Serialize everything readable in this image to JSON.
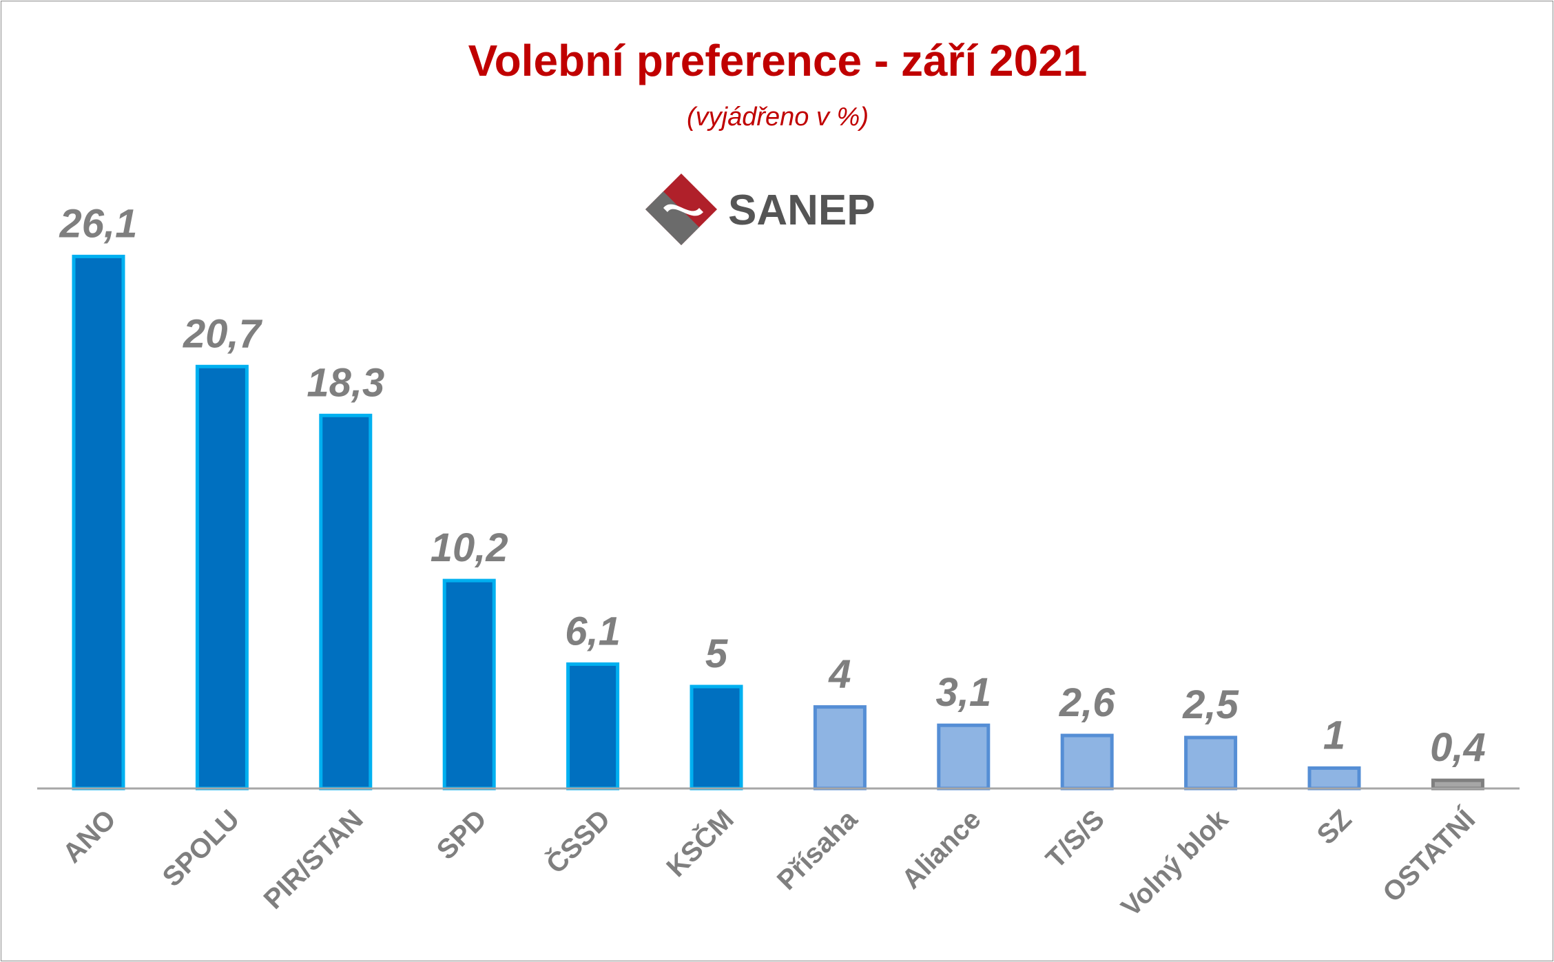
{
  "chart_data": {
    "type": "bar",
    "title": "Volební preference - září 2021",
    "subtitle": "(vyjádřeno v %)",
    "categories": [
      "ANO",
      "SPOLU",
      "PIR/STAN",
      "SPD",
      "ČSSD",
      "KSČM",
      "Přísaha",
      "Aliance",
      "T/S/S",
      "Volný blok",
      "SZ",
      "OSTATNÍ"
    ],
    "values": [
      26.1,
      20.7,
      18.3,
      10.2,
      6.1,
      5,
      4,
      3.1,
      2.6,
      2.5,
      1,
      0.4
    ],
    "value_labels": [
      "26,1",
      "20,7",
      "18,3",
      "10,2",
      "6,1",
      "5",
      "4",
      "3,1",
      "2,6",
      "2,5",
      "1",
      "0,4"
    ],
    "bar_styles": [
      "dark",
      "dark",
      "dark",
      "dark",
      "dark",
      "dark",
      "light",
      "light",
      "light",
      "light",
      "light",
      "gray"
    ],
    "ylim": [
      0,
      27
    ],
    "grid": false,
    "xlabel": "",
    "ylabel": ""
  },
  "logo": {
    "text": "SANEP"
  },
  "colors": {
    "title": "#c00000",
    "dark_fill": "#0070c0",
    "dark_stroke": "#00b0f0",
    "light_fill": "#8eb4e3",
    "light_stroke": "#558ed5",
    "gray_fill": "#a6a6a6",
    "gray_stroke": "#7f7f7f",
    "value_label": "#7f7f7f",
    "axis_label": "#7f7f7f",
    "axis_line": "#a6a6a6",
    "logo_red": "#b0202a",
    "logo_gray": "#555555"
  }
}
